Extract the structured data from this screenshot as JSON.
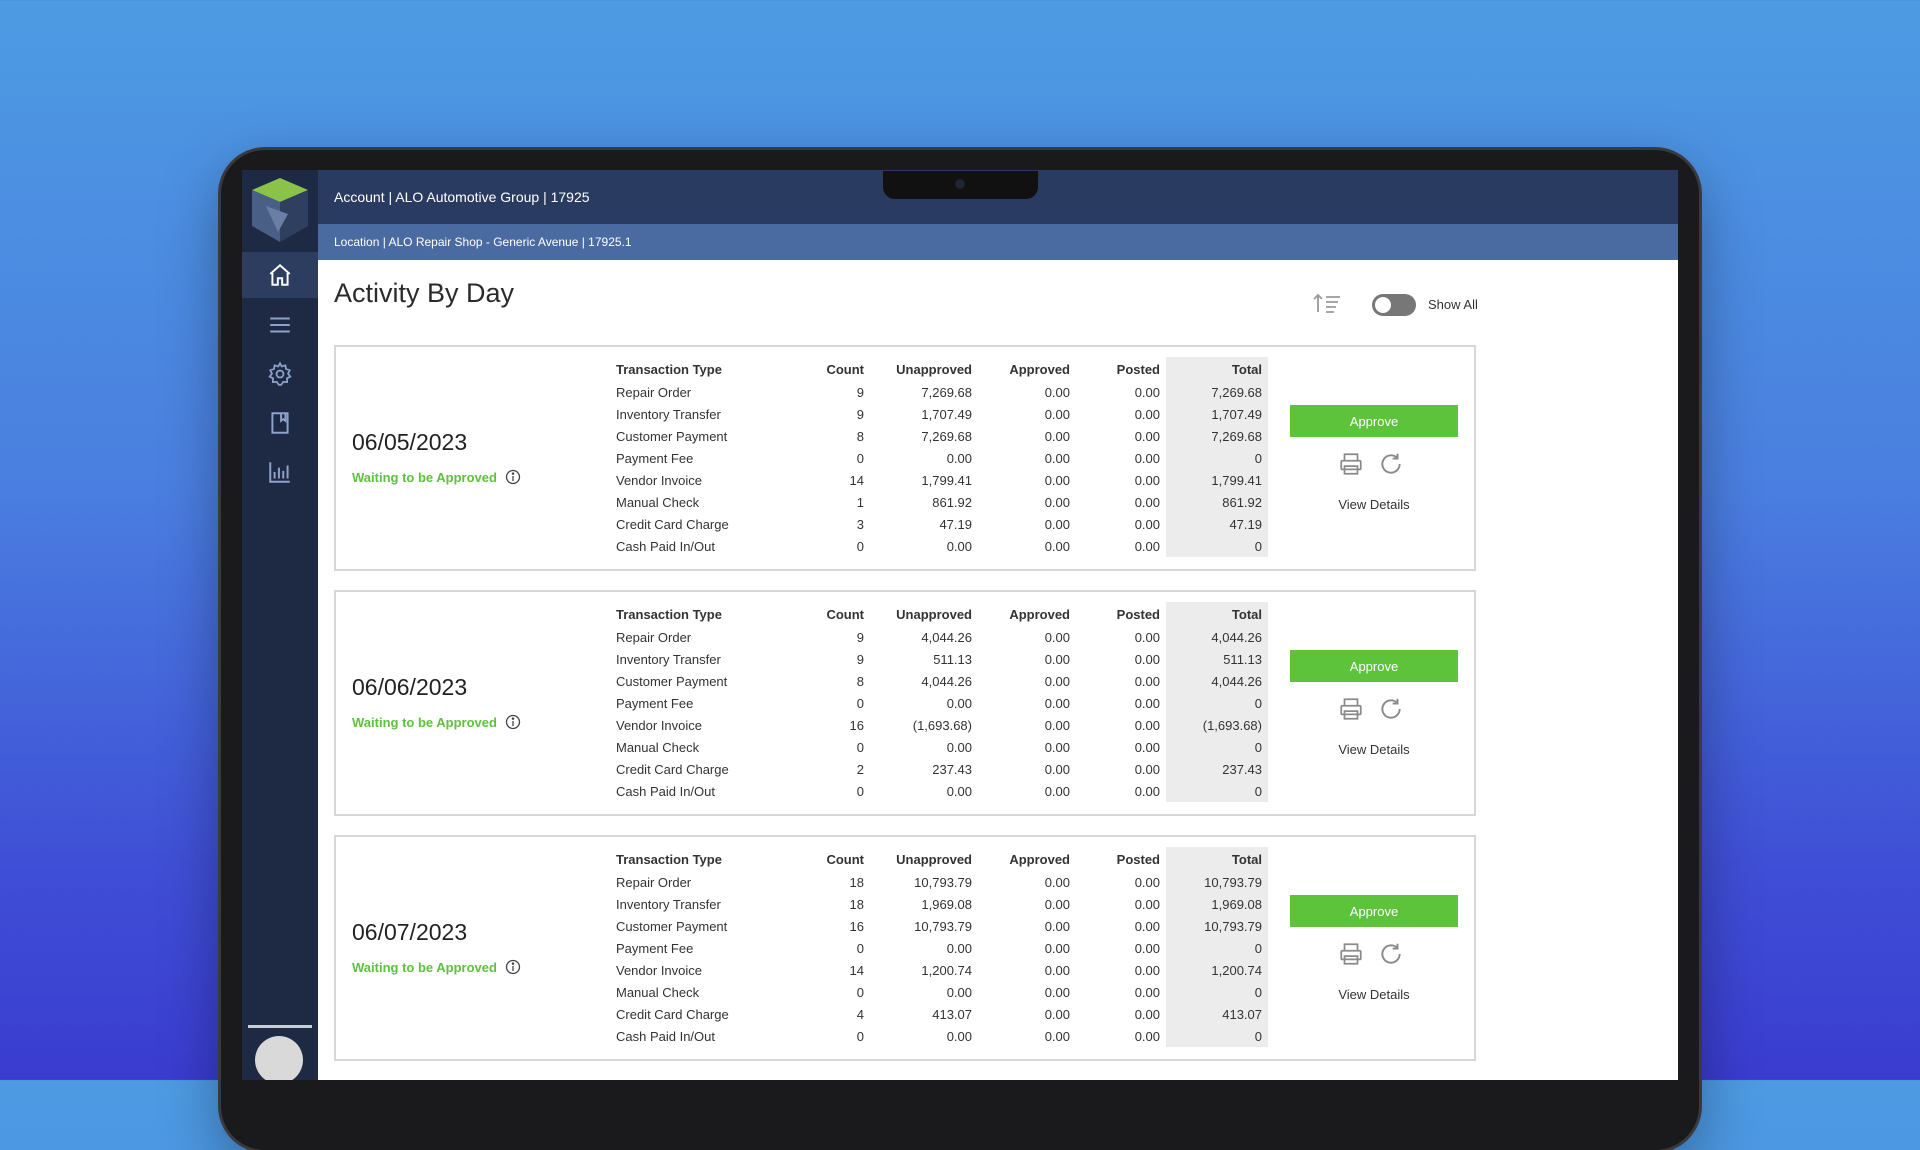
{
  "header": {
    "account": "Account | ALO Automotive Group | 17925",
    "location": "Location | ALO Repair Shop - Generic Avenue | 17925.1"
  },
  "page": {
    "title": "Activity By Day",
    "show_all_label": "Show All",
    "show_all_on": false
  },
  "sidebar": {
    "items": [
      {
        "icon": "home-icon",
        "active": true
      },
      {
        "icon": "menu-icon",
        "active": false
      },
      {
        "icon": "gear-icon",
        "active": false
      },
      {
        "icon": "bookmark-icon",
        "active": false
      },
      {
        "icon": "bar-chart-icon",
        "active": false
      }
    ]
  },
  "columns": [
    "Transaction Type",
    "Count",
    "Unapproved",
    "Approved",
    "Posted",
    "Total"
  ],
  "cards": [
    {
      "date": "06/05/2023",
      "status": "Waiting to be Approved",
      "approve_label": "Approve",
      "view_details_label": "View Details",
      "rows": [
        [
          "Repair Order",
          "9",
          "7,269.68",
          "0.00",
          "0.00",
          "7,269.68"
        ],
        [
          "Inventory Transfer",
          "9",
          "1,707.49",
          "0.00",
          "0.00",
          "1,707.49"
        ],
        [
          "Customer Payment",
          "8",
          "7,269.68",
          "0.00",
          "0.00",
          "7,269.68"
        ],
        [
          "Payment Fee",
          "0",
          "0.00",
          "0.00",
          "0.00",
          "0"
        ],
        [
          "Vendor Invoice",
          "14",
          "1,799.41",
          "0.00",
          "0.00",
          "1,799.41"
        ],
        [
          "Manual Check",
          "1",
          "861.92",
          "0.00",
          "0.00",
          "861.92"
        ],
        [
          "Credit Card Charge",
          "3",
          "47.19",
          "0.00",
          "0.00",
          "47.19"
        ],
        [
          "Cash Paid In/Out",
          "0",
          "0.00",
          "0.00",
          "0.00",
          "0"
        ]
      ]
    },
    {
      "date": "06/06/2023",
      "status": "Waiting to be Approved",
      "approve_label": "Approve",
      "view_details_label": "View Details",
      "rows": [
        [
          "Repair Order",
          "9",
          "4,044.26",
          "0.00",
          "0.00",
          "4,044.26"
        ],
        [
          "Inventory Transfer",
          "9",
          "511.13",
          "0.00",
          "0.00",
          "511.13"
        ],
        [
          "Customer Payment",
          "8",
          "4,044.26",
          "0.00",
          "0.00",
          "4,044.26"
        ],
        [
          "Payment Fee",
          "0",
          "0.00",
          "0.00",
          "0.00",
          "0"
        ],
        [
          "Vendor Invoice",
          "16",
          "(1,693.68)",
          "0.00",
          "0.00",
          "(1,693.68)"
        ],
        [
          "Manual Check",
          "0",
          "0.00",
          "0.00",
          "0.00",
          "0"
        ],
        [
          "Credit Card Charge",
          "2",
          "237.43",
          "0.00",
          "0.00",
          "237.43"
        ],
        [
          "Cash Paid In/Out",
          "0",
          "0.00",
          "0.00",
          "0.00",
          "0"
        ]
      ]
    },
    {
      "date": "06/07/2023",
      "status": "Waiting to be Approved",
      "approve_label": "Approve",
      "view_details_label": "View Details",
      "rows": [
        [
          "Repair Order",
          "18",
          "10,793.79",
          "0.00",
          "0.00",
          "10,793.79"
        ],
        [
          "Inventory Transfer",
          "18",
          "1,969.08",
          "0.00",
          "0.00",
          "1,969.08"
        ],
        [
          "Customer Payment",
          "16",
          "10,793.79",
          "0.00",
          "0.00",
          "10,793.79"
        ],
        [
          "Payment Fee",
          "0",
          "0.00",
          "0.00",
          "0.00",
          "0"
        ],
        [
          "Vendor Invoice",
          "14",
          "1,200.74",
          "0.00",
          "0.00",
          "1,200.74"
        ],
        [
          "Manual Check",
          "0",
          "0.00",
          "0.00",
          "0.00",
          "0"
        ],
        [
          "Credit Card Charge",
          "4",
          "413.07",
          "0.00",
          "0.00",
          "413.07"
        ],
        [
          "Cash Paid In/Out",
          "0",
          "0.00",
          "0.00",
          "0.00",
          "0"
        ]
      ]
    }
  ],
  "colors": {
    "accent_green": "#5cc33b",
    "sidebar": "#1e2a44",
    "topbar": "#2a3b62",
    "locbar": "#4a6aa2"
  }
}
